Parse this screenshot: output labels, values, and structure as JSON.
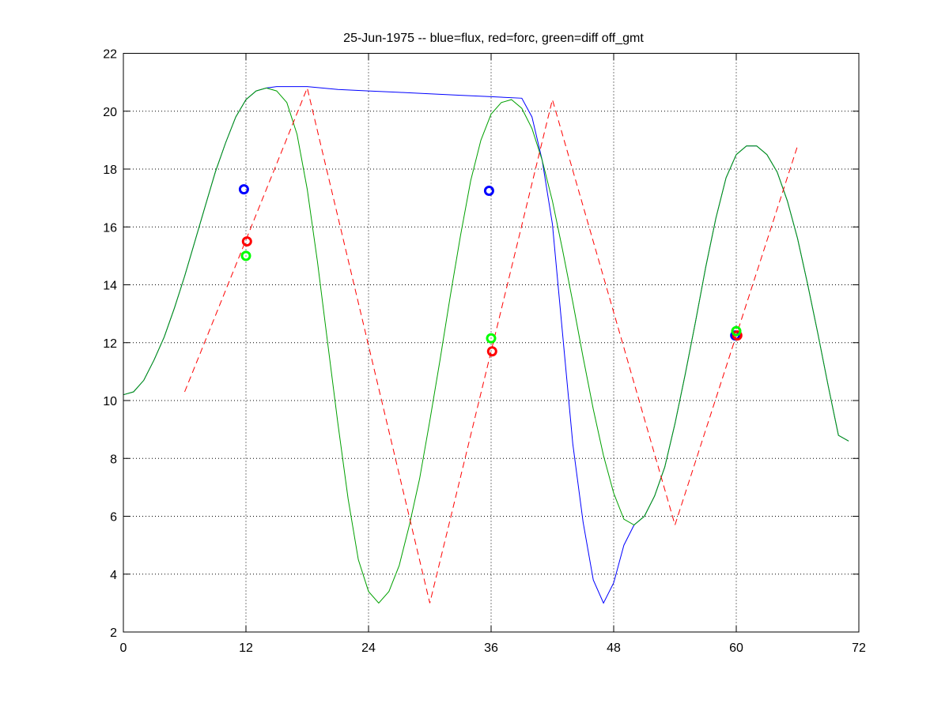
{
  "chart_data": {
    "type": "line",
    "title": "25-Jun-1975 -- blue=flux, red=forc, green=diff off_gmt",
    "xlim": [
      0,
      72
    ],
    "ylim": [
      2,
      22
    ],
    "xticks": [
      0,
      12,
      24,
      36,
      48,
      60,
      72
    ],
    "yticks": [
      2,
      4,
      6,
      8,
      10,
      12,
      14,
      16,
      18,
      20,
      22
    ],
    "grid": true,
    "colors": {
      "blue": "#0000ff",
      "red": "#ff0000",
      "green": "#00a000",
      "green_marker": "#00ff00"
    },
    "series": [
      {
        "color": "blue",
        "style": "solid",
        "x": [
          0,
          1,
          2,
          3,
          4,
          5,
          6,
          7,
          8,
          9,
          10,
          11,
          12,
          13,
          14,
          15,
          18,
          21,
          24,
          27,
          30,
          33,
          36,
          39,
          40,
          41,
          42,
          43,
          44,
          45,
          46,
          47,
          48,
          49,
          50,
          51,
          52,
          53,
          54,
          55,
          56,
          57,
          58,
          59,
          60,
          61,
          62,
          63,
          64,
          65,
          66,
          67,
          68,
          69,
          70,
          71
        ],
        "y": [
          10.2,
          10.3,
          10.7,
          11.4,
          12.2,
          13.2,
          14.3,
          15.5,
          16.7,
          17.9,
          18.9,
          19.8,
          20.4,
          20.7,
          20.8,
          20.85,
          20.85,
          20.75,
          20.7,
          20.65,
          20.6,
          20.55,
          20.5,
          20.45,
          19.8,
          18.3,
          16.1,
          12.3,
          8.5,
          5.8,
          3.8,
          3.0,
          3.7,
          5.0,
          5.7,
          6.0,
          6.7,
          7.7,
          9.2,
          10.9,
          12.7,
          14.6,
          16.3,
          17.7,
          18.5,
          18.8,
          18.8,
          18.5,
          17.9,
          16.9,
          15.6,
          14.0,
          12.3,
          10.5,
          8.8,
          8.6
        ]
      },
      {
        "color": "green",
        "style": "solid",
        "x": [
          0,
          1,
          2,
          3,
          4,
          5,
          6,
          7,
          8,
          9,
          10,
          11,
          12,
          13,
          14,
          15,
          16,
          17,
          18,
          19,
          20,
          21,
          22,
          23,
          24,
          25,
          26,
          27,
          28,
          29,
          30,
          31,
          32,
          33,
          34,
          35,
          36,
          37,
          38,
          39,
          40,
          41,
          42,
          43,
          44,
          45,
          46,
          47,
          48,
          49,
          50,
          51,
          52,
          53,
          54,
          55,
          56,
          57,
          58,
          59,
          60,
          61,
          62,
          63,
          64,
          65,
          66,
          67,
          68,
          69,
          70,
          71
        ],
        "y": [
          10.2,
          10.3,
          10.7,
          11.4,
          12.2,
          13.2,
          14.3,
          15.5,
          16.7,
          17.9,
          18.9,
          19.8,
          20.4,
          20.7,
          20.8,
          20.7,
          20.3,
          19.2,
          17.3,
          14.8,
          12.0,
          9.2,
          6.6,
          4.5,
          3.4,
          3.0,
          3.4,
          4.3,
          5.7,
          7.3,
          9.3,
          11.4,
          13.6,
          15.7,
          17.6,
          19.0,
          19.9,
          20.3,
          20.4,
          20.1,
          19.4,
          18.3,
          16.9,
          15.2,
          13.4,
          11.5,
          9.7,
          8.1,
          6.8,
          5.9,
          5.7,
          6.0,
          6.7,
          7.7,
          9.2,
          10.9,
          12.7,
          14.6,
          16.3,
          17.7,
          18.5,
          18.8,
          18.8,
          18.5,
          17.9,
          16.9,
          15.6,
          14.0,
          12.3,
          10.5,
          8.8,
          8.6
        ]
      },
      {
        "color": "red",
        "style": "dashed",
        "x": [
          6,
          18,
          30,
          42,
          54,
          66
        ],
        "y": [
          10.3,
          20.8,
          3.0,
          20.4,
          5.7,
          18.8
        ]
      }
    ],
    "markers": [
      {
        "color": "blue",
        "x": 11.8,
        "y": 17.3
      },
      {
        "color": "red",
        "x": 12.1,
        "y": 15.5
      },
      {
        "color": "green_marker",
        "x": 12.0,
        "y": 15.0
      },
      {
        "color": "blue",
        "x": 35.8,
        "y": 17.25
      },
      {
        "color": "green_marker",
        "x": 36.0,
        "y": 12.15
      },
      {
        "color": "red",
        "x": 36.1,
        "y": 11.7
      },
      {
        "color": "blue",
        "x": 59.9,
        "y": 12.25
      },
      {
        "color": "red",
        "x": 60.1,
        "y": 12.25
      },
      {
        "color": "green_marker",
        "x": 60.0,
        "y": 12.4
      }
    ]
  }
}
